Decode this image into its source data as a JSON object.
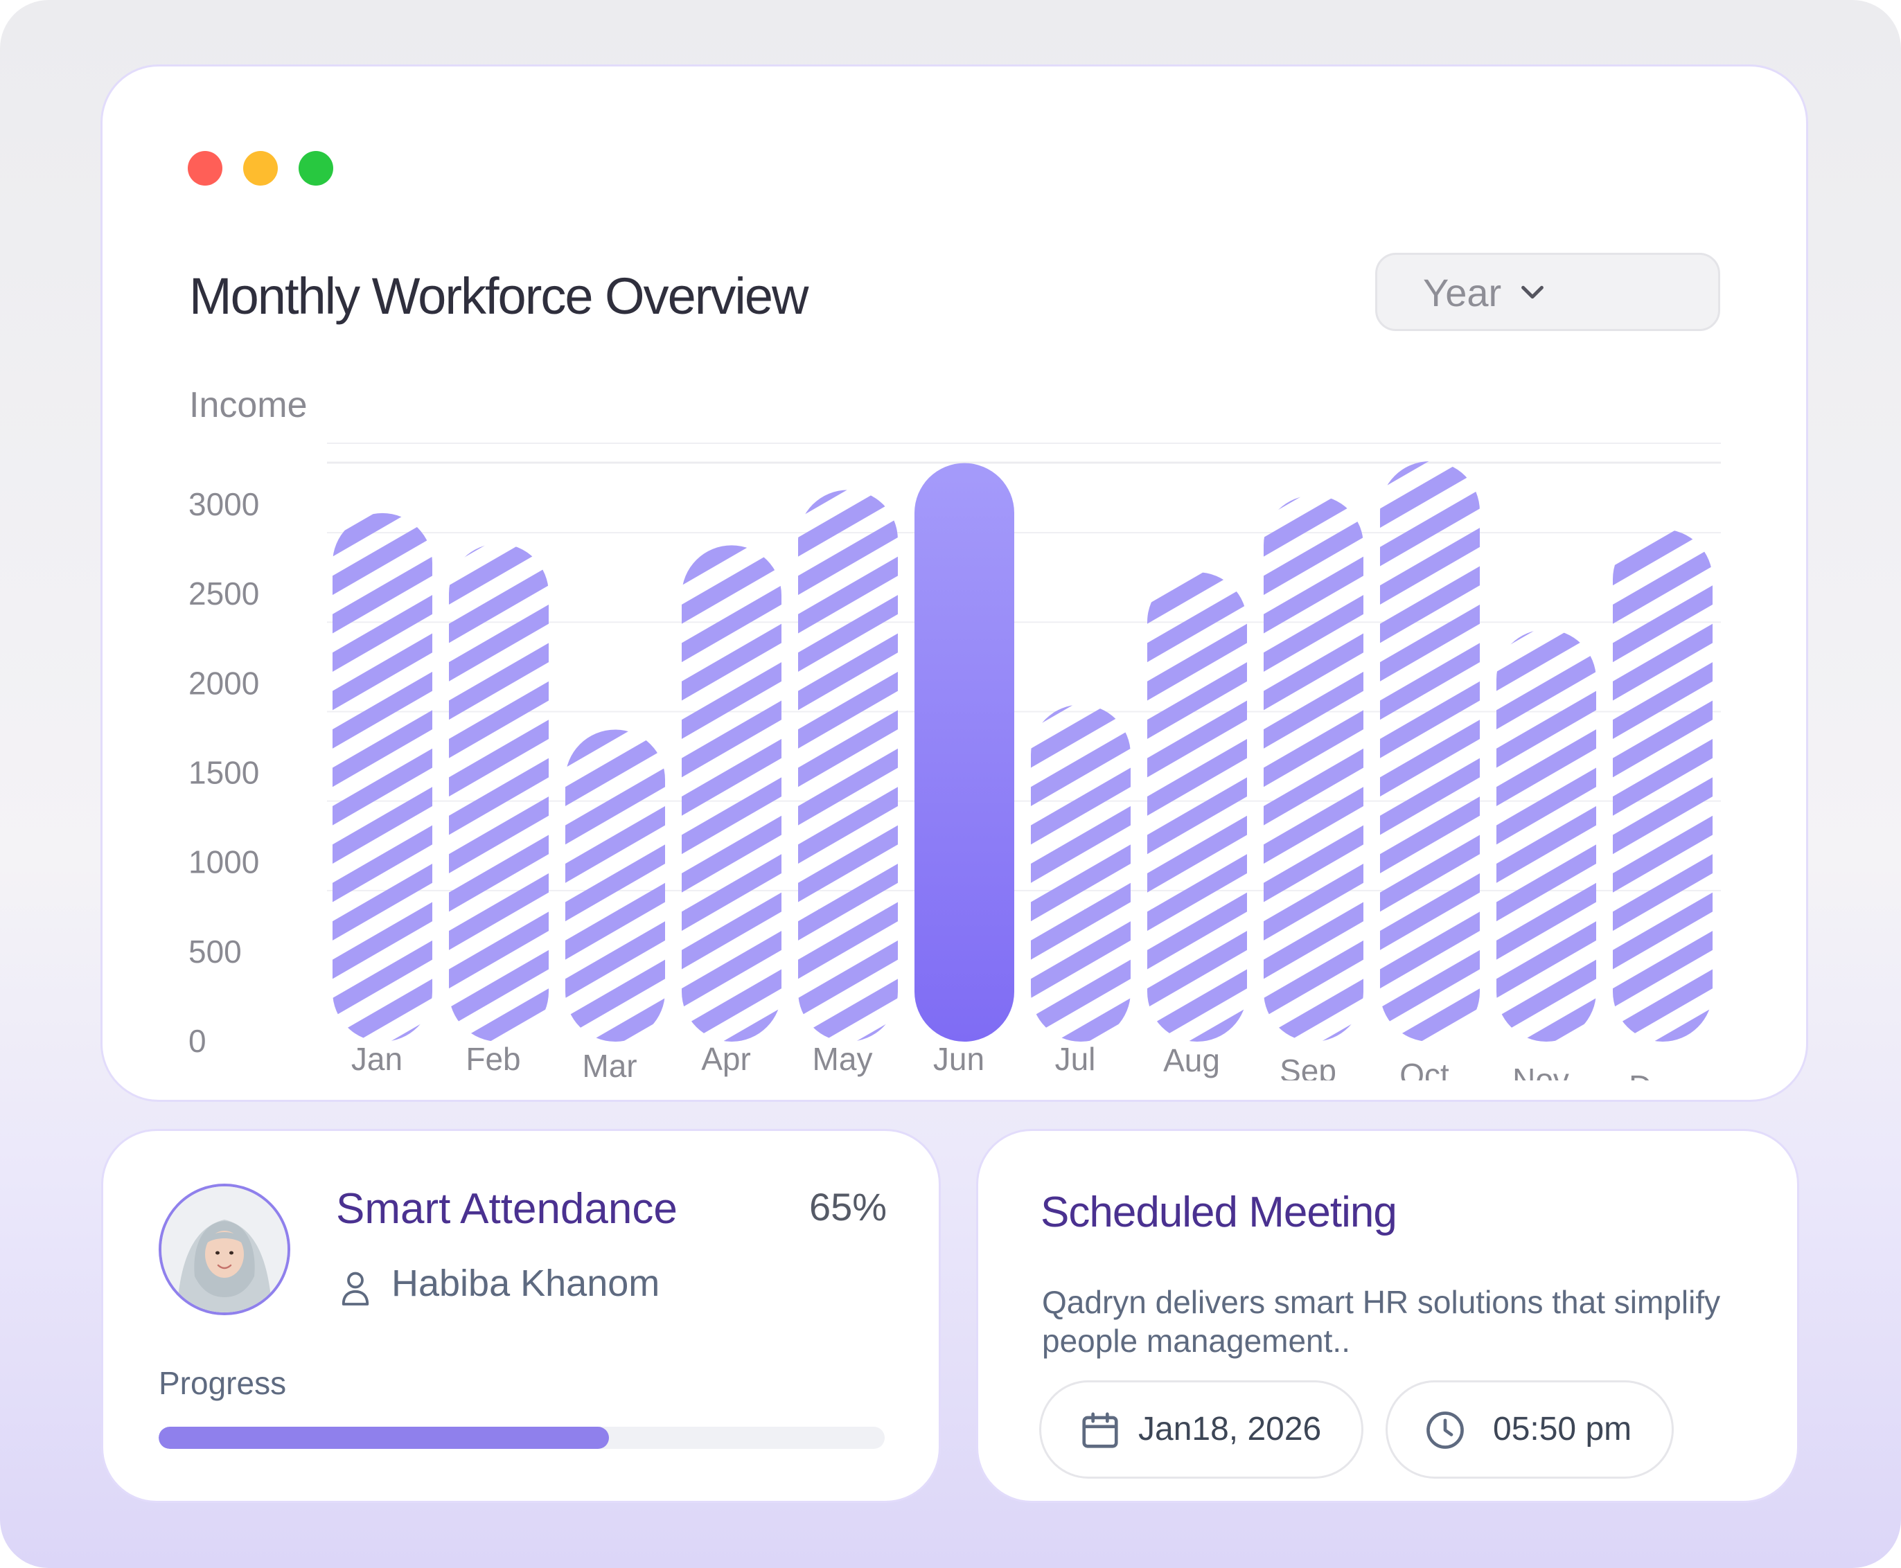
{
  "window": {
    "controls": [
      {
        "name": "close",
        "color": "#ff5f57"
      },
      {
        "name": "minimize",
        "color": "#febc2e"
      },
      {
        "name": "maximize",
        "color": "#28c840"
      }
    ]
  },
  "overview": {
    "title": "Monthly Workforce Overview",
    "period_select": {
      "value": "Year",
      "icon": "chevron-down-icon"
    }
  },
  "chart_data": {
    "type": "bar",
    "ylabel": "Income",
    "xlabel": "",
    "ylim": [
      0,
      3000
    ],
    "yticks": [
      0,
      500,
      1000,
      1500,
      2000,
      2500,
      3000
    ],
    "categories": [
      "Jan",
      "Feb",
      "Mar",
      "Apr",
      "May",
      "Jun",
      "Jul",
      "Aug",
      "Sep",
      "Oct",
      "Nov",
      "Dec"
    ],
    "values": [
      2950,
      2780,
      1740,
      2770,
      3080,
      3230,
      1880,
      2620,
      3050,
      3240,
      2300,
      2860
    ],
    "highlighted": "Jun",
    "colors": {
      "bar": "#a79cf7",
      "highlight_top": "#a59bfa",
      "highlight_bottom": "#7f6cf4"
    }
  },
  "attendance": {
    "title": "Smart Attendance",
    "percent": "65%",
    "name": "Habiba Khanom",
    "progress_label": "Progress",
    "progress": 0.62,
    "colors": {
      "accent": "#8f80ec"
    }
  },
  "meeting": {
    "title": "Scheduled Meeting",
    "description": "Qadryn delivers smart HR solutions that simplify people management..",
    "date": "Jan18, 2026",
    "time": "05:50 pm",
    "date_icon": "calendar-icon",
    "time_icon": "clock-icon"
  }
}
